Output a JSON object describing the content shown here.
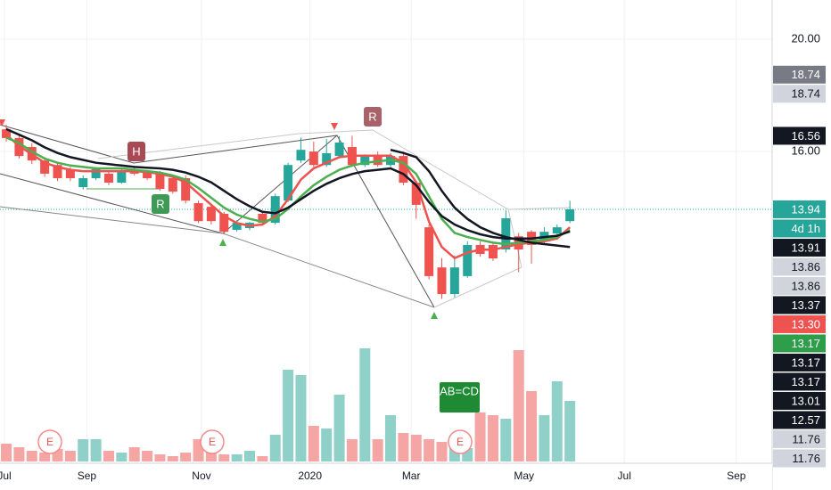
{
  "chart_data": {
    "type": "candlestick",
    "x": [
      0,
      1,
      2,
      3,
      4,
      5,
      6,
      7,
      8,
      9,
      10,
      11,
      12,
      13,
      14,
      15,
      16,
      17,
      18,
      19,
      20,
      21,
      22,
      23,
      24,
      25,
      26,
      27,
      28,
      29,
      30,
      31,
      32,
      33,
      34,
      35,
      36,
      37,
      38,
      39,
      40,
      41,
      42,
      43,
      44
    ],
    "open": [
      16.79,
      16.48,
      16.16,
      15.68,
      15.52,
      15.37,
      14.73,
      15.05,
      15.21,
      14.89,
      15.37,
      15.27,
      15.21,
      15.05,
      15.05,
      14.16,
      14.03,
      13.78,
      13.21,
      13.27,
      13.78,
      13.46,
      14.25,
      15.68,
      16.0,
      15.52,
      15.84,
      16.16,
      15.52,
      15.84,
      15.52,
      15.84,
      14.89,
      13.3,
      11.87,
      10.92,
      11.56,
      12.67,
      12.67,
      12.51,
      12.98,
      13.14,
      12.83,
      13.08,
      13.52
    ],
    "high": [
      16.95,
      16.6,
      16.3,
      15.8,
      15.6,
      15.45,
      15.15,
      15.45,
      15.3,
      15.4,
      15.45,
      15.35,
      15.3,
      15.12,
      15.15,
      14.25,
      14.1,
      13.85,
      13.55,
      13.5,
      13.85,
      14.5,
      15.6,
      16.5,
      16.35,
      16.45,
      16.55,
      16.56,
      15.9,
      16.0,
      15.95,
      16.0,
      14.95,
      13.4,
      12.2,
      12.3,
      12.8,
      12.8,
      12.8,
      13.9,
      13.1,
      13.2,
      13.3,
      13.4,
      14.25
    ],
    "low": [
      16.35,
      15.75,
      15.55,
      15.1,
      14.95,
      14.95,
      14.65,
      14.98,
      14.8,
      14.85,
      15.15,
      14.98,
      14.6,
      14.5,
      14.15,
      13.45,
      13.4,
      13.05,
      13.15,
      13.2,
      13.4,
      13.4,
      14.2,
      15.6,
      15.45,
      15.45,
      15.75,
      15.45,
      15.45,
      15.45,
      15.45,
      14.8,
      13.6,
      11.45,
      10.75,
      10.8,
      11.5,
      12.25,
      12.1,
      12.4,
      11.7,
      12.0,
      12.7,
      13.0,
      13.45
    ],
    "close": [
      16.48,
      15.84,
      15.68,
      15.21,
      15.05,
      15.05,
      15.05,
      15.37,
      14.89,
      15.3,
      15.21,
      15.05,
      14.67,
      14.57,
      14.25,
      13.52,
      13.52,
      13.14,
      13.46,
      13.46,
      13.46,
      14.41,
      15.52,
      16.06,
      15.52,
      15.94,
      16.32,
      15.52,
      15.84,
      15.52,
      15.84,
      14.89,
      14.1,
      11.56,
      10.92,
      11.87,
      12.67,
      12.35,
      12.19,
      13.62,
      12.51,
      12.67,
      13.14,
      13.3,
      13.94
    ],
    "volume": [
      20,
      16,
      12,
      10,
      14,
      12,
      25,
      25,
      12,
      10,
      16,
      12,
      8,
      6,
      10,
      25,
      12,
      8,
      8,
      12,
      6,
      30,
      103,
      97,
      40,
      37,
      75,
      25,
      127,
      25,
      52,
      32,
      30,
      25,
      22,
      18,
      15,
      55,
      52,
      48,
      125,
      79,
      52,
      90,
      68
    ],
    "vlim": [
      0,
      130
    ],
    "up_color": "#26a69a",
    "down_color": "#ef5350",
    "volume_up_color": "#8fd0c9",
    "volume_down_color": "#f5a5a3",
    "lines": [
      {
        "color": "#ef5350",
        "values": [
          16.6,
          16.2,
          15.9,
          15.6,
          15.45,
          15.35,
          15.3,
          15.3,
          15.3,
          15.3,
          15.3,
          15.27,
          15.2,
          15.1,
          14.9,
          14.5,
          14.1,
          13.7,
          13.45,
          13.35,
          13.4,
          13.7,
          14.3,
          15.0,
          15.4,
          15.6,
          15.8,
          15.85,
          15.85,
          15.85,
          15.85,
          15.6,
          14.9,
          13.5,
          12.6,
          12.2,
          12.4,
          12.5,
          12.5,
          12.6,
          12.7,
          12.75,
          12.8,
          12.9,
          13.3
        ]
      },
      {
        "color": "#4caf50",
        "values": [
          16.5,
          16.3,
          16.0,
          15.75,
          15.6,
          15.5,
          15.45,
          15.4,
          15.4,
          15.4,
          15.35,
          15.3,
          15.25,
          15.15,
          15.0,
          14.7,
          14.35,
          14.0,
          13.75,
          13.6,
          13.5,
          13.6,
          13.95,
          14.4,
          14.8,
          15.1,
          15.35,
          15.5,
          15.6,
          15.65,
          15.7,
          15.6,
          15.2,
          14.4,
          13.6,
          13.1,
          12.95,
          12.85,
          12.75,
          12.7,
          12.75,
          12.8,
          12.85,
          12.95,
          13.2
        ]
      },
      {
        "color": "#131722",
        "values": [
          16.8,
          16.6,
          16.4,
          16.15,
          15.95,
          15.8,
          15.7,
          15.6,
          15.55,
          15.5,
          15.45,
          15.42,
          15.4,
          15.35,
          15.25,
          15.1,
          14.9,
          14.6,
          14.3,
          14.05,
          13.85,
          13.8,
          14.0,
          14.3,
          14.6,
          14.85,
          15.05,
          15.2,
          15.3,
          15.35,
          15.4,
          15.2,
          14.8,
          14.2,
          13.7,
          13.4,
          13.2,
          13.05,
          12.95,
          12.9,
          12.9,
          12.9,
          12.95,
          13.0,
          13.15
        ]
      },
      {
        "color": "#131722",
        "values": [
          null,
          null,
          null,
          null,
          null,
          null,
          null,
          null,
          null,
          null,
          null,
          null,
          null,
          null,
          null,
          null,
          null,
          null,
          null,
          null,
          null,
          null,
          null,
          null,
          null,
          null,
          null,
          null,
          null,
          null,
          16.06,
          15.95,
          15.8,
          15.3,
          14.6,
          14.0,
          13.6,
          13.3,
          13.1,
          12.95,
          12.85,
          12.75,
          12.7,
          12.65,
          12.6
        ]
      }
    ],
    "xlim": [
      -0.49,
      59.79
    ],
    "xticks": [
      {
        "value": -0.14,
        "label": "Jul"
      },
      {
        "value": 6.29,
        "label": "Sep"
      },
      {
        "value": 15.24,
        "label": "Nov"
      },
      {
        "value": 23.71,
        "label": "2020"
      },
      {
        "value": 31.61,
        "label": "Mar"
      },
      {
        "value": 40.42,
        "label": "May"
      },
      {
        "value": 48.25,
        "label": "Jul"
      },
      {
        "value": 56.99,
        "label": "Sep"
      }
    ],
    "ylim": [
      4.89,
      21.4
    ],
    "yticks": [
      {
        "value": 20,
        "label": "20.00"
      },
      {
        "value": 16,
        "label": "16.00"
      }
    ],
    "grid": true,
    "last_price": 13.94,
    "badges": [
      {
        "value": 18.74,
        "bg": "#787b86",
        "fg": "#ffffff"
      },
      {
        "value": 18.74,
        "bg": "#d1d4dc",
        "fg": "#131722"
      },
      {
        "value": 16.56,
        "bg": "#131722",
        "fg": "#ffffff"
      },
      {
        "value": 13.94,
        "bg": "#26a69a",
        "fg": "#ffffff"
      },
      {
        "label": "4d 1h",
        "bg": "#26a69a",
        "fg": "#ffffff"
      },
      {
        "value": 13.91,
        "bg": "#131722",
        "fg": "#ffffff"
      },
      {
        "value": 13.86,
        "bg": "#d1d4dc",
        "fg": "#131722"
      },
      {
        "value": 13.86,
        "bg": "#d1d4dc",
        "fg": "#131722"
      },
      {
        "value": 13.37,
        "bg": "#131722",
        "fg": "#ffffff"
      },
      {
        "value": 13.3,
        "label": "13.30",
        "bg": "#ef5350",
        "fg": "#ffffff"
      },
      {
        "value": 13.17,
        "bg": "#2e9e4a",
        "fg": "#ffffff"
      },
      {
        "value": 13.17,
        "bg": "#131722",
        "fg": "#ffffff"
      },
      {
        "value": 13.17,
        "bg": "#131722",
        "fg": "#ffffff"
      },
      {
        "value": 13.01,
        "bg": "#131722",
        "fg": "#ffffff"
      },
      {
        "value": 12.57,
        "bg": "#131722",
        "fg": "#ffffff"
      },
      {
        "value": 11.76,
        "bg": "#d1d4dc",
        "fg": "#131722"
      },
      {
        "value": 11.76,
        "bg": "#d1d4dc",
        "fg": "#131722"
      }
    ],
    "annotations": [
      "H",
      "R",
      "R",
      "AB=CD",
      "E",
      "E",
      "E"
    ]
  }
}
